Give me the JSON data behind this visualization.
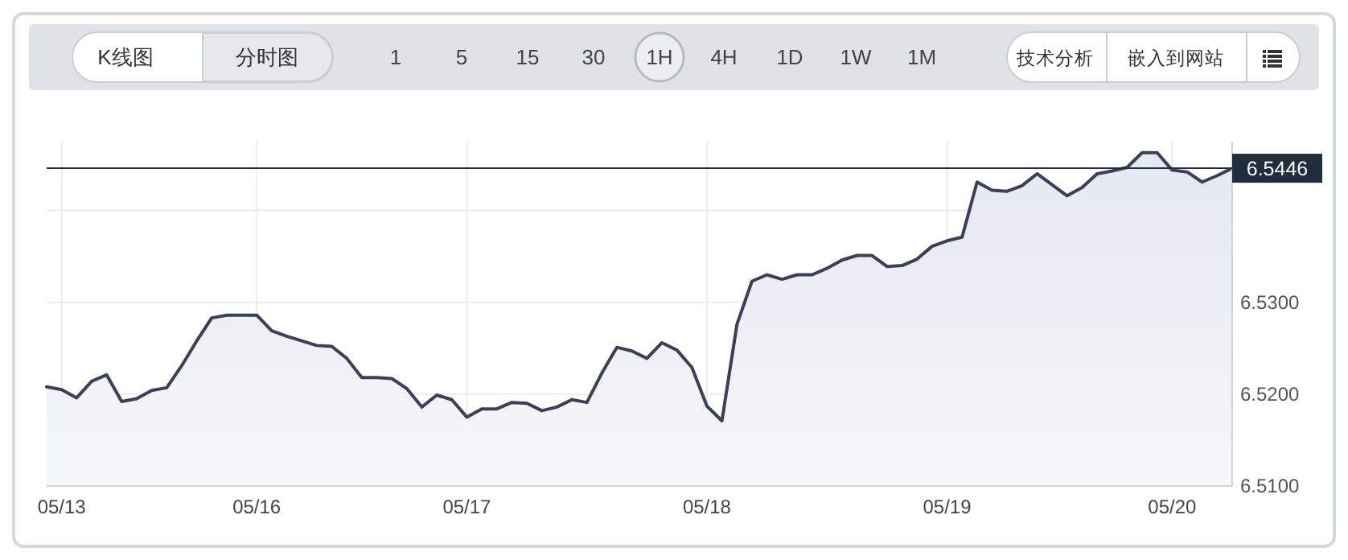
{
  "chart_data": {
    "type": "area",
    "categories": [
      null,
      "05/13",
      null,
      null,
      null,
      null,
      null,
      null,
      null,
      null,
      null,
      null,
      null,
      null,
      "05/16",
      null,
      null,
      null,
      null,
      null,
      null,
      null,
      null,
      null,
      null,
      null,
      null,
      null,
      "05/17",
      null,
      null,
      null,
      null,
      null,
      null,
      null,
      null,
      null,
      null,
      null,
      null,
      null,
      null,
      null,
      "05/18",
      null,
      null,
      null,
      null,
      null,
      null,
      null,
      null,
      null,
      null,
      null,
      null,
      null,
      null,
      null,
      "05/19",
      null,
      null,
      null,
      null,
      null,
      null,
      null,
      null,
      null,
      null,
      null,
      null,
      null,
      null,
      "05/20",
      null,
      null,
      null,
      null
    ],
    "series": [
      {
        "color": "#3c3f58",
        "values": [
          6.5208,
          6.5205,
          6.5196,
          6.5214,
          6.5221,
          6.5192,
          6.5195,
          6.5204,
          6.5207,
          6.5231,
          6.5258,
          6.5283,
          6.5286,
          6.5286,
          6.5286,
          6.5269,
          6.5263,
          6.5258,
          6.5253,
          6.5252,
          6.5239,
          6.5218,
          6.5218,
          6.5217,
          6.5206,
          6.5186,
          6.5199,
          6.5194,
          6.5175,
          6.5184,
          6.5184,
          6.5191,
          6.519,
          6.5182,
          6.5186,
          6.5194,
          6.5191,
          6.5223,
          6.5251,
          6.5247,
          6.5239,
          6.5256,
          6.5248,
          6.5229,
          6.5187,
          6.5171,
          6.5276,
          6.5323,
          6.533,
          6.5325,
          6.533,
          6.533,
          6.5337,
          6.5346,
          6.5351,
          6.5351,
          6.5339,
          6.534,
          6.5347,
          6.5361,
          6.5367,
          6.5371,
          6.5431,
          6.5422,
          6.5421,
          6.5427,
          6.544,
          6.5428,
          6.5416,
          6.5425,
          6.544,
          6.5443,
          6.5447,
          6.5463,
          6.5463,
          6.5444,
          6.5442,
          6.5431,
          6.5438,
          6.5446
        ]
      }
    ],
    "ylim": [
      6.51,
      6.5475
    ],
    "yticks": [
      {
        "value": 6.51,
        "label": "6.5100"
      },
      {
        "value": 6.52,
        "label": "6.5200"
      },
      {
        "value": 6.53,
        "label": "6.5300"
      },
      {
        "value": 6.54,
        "label": null
      }
    ],
    "grid": true,
    "ref_lines": [
      {
        "axis": "y",
        "value": 6.5446,
        "label": "6.5446",
        "color": "#1f2d3d"
      }
    ],
    "annotations": [
      "K线图",
      "分时图",
      "15",
      "30",
      "1",
      "5",
      "1H",
      "4H",
      "1D",
      "1W",
      "1M",
      "技术分析",
      "嵌入到网站"
    ]
  }
}
